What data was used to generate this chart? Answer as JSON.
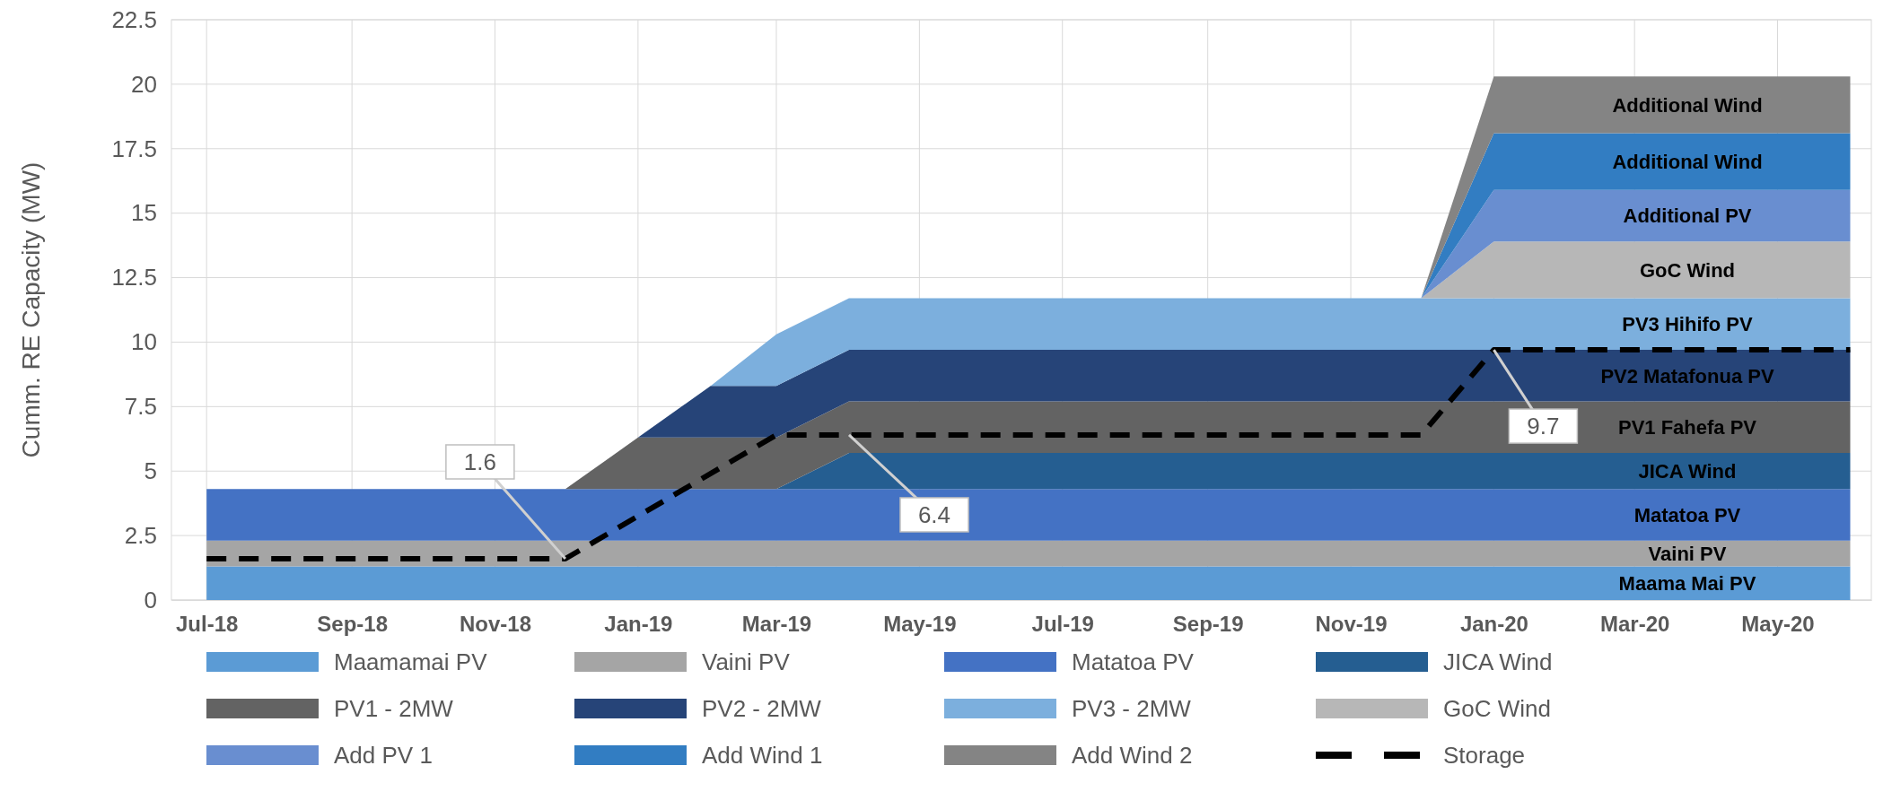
{
  "chart_data": {
    "type": "area",
    "stacked": true,
    "ylabel": "Cumm. RE Capacity (MW)",
    "x": [
      "2018-07",
      "2018-08",
      "2018-09",
      "2018-10",
      "2018-11",
      "2018-12",
      "2019-01",
      "2019-02",
      "2019-03",
      "2019-04",
      "2019-05",
      "2019-06",
      "2019-07",
      "2019-08",
      "2019-09",
      "2019-10",
      "2019-11",
      "2019-12",
      "2020-01",
      "2020-02",
      "2020-03",
      "2020-04",
      "2020-05",
      "2020-06"
    ],
    "xlim": [
      "2018-06-16",
      "2020-06-10"
    ],
    "xticks": [
      {
        "value": "2018-07",
        "label": "Jul-18"
      },
      {
        "value": "2018-09",
        "label": "Sep-18"
      },
      {
        "value": "2018-11",
        "label": "Nov-18"
      },
      {
        "value": "2019-01",
        "label": "Jan-19"
      },
      {
        "value": "2019-03",
        "label": "Mar-19"
      },
      {
        "value": "2019-05",
        "label": "May-19"
      },
      {
        "value": "2019-07",
        "label": "Jul-19"
      },
      {
        "value": "2019-09",
        "label": "Sep-19"
      },
      {
        "value": "2019-11",
        "label": "Nov-19"
      },
      {
        "value": "2020-01",
        "label": "Jan-20"
      },
      {
        "value": "2020-03",
        "label": "Mar-20"
      },
      {
        "value": "2020-05",
        "label": "May-20"
      }
    ],
    "ylim": [
      0,
      22.5
    ],
    "yticks": [
      0,
      2.5,
      5,
      7.5,
      10,
      12.5,
      15,
      17.5,
      20,
      22.5
    ],
    "grid": true,
    "legend": "bottom",
    "series": [
      {
        "name": "Maamamai PV",
        "color": "#5b9bd5",
        "values": [
          1.3,
          1.3,
          1.3,
          1.3,
          1.3,
          1.3,
          1.3,
          1.3,
          1.3,
          1.3,
          1.3,
          1.3,
          1.3,
          1.3,
          1.3,
          1.3,
          1.3,
          1.3,
          1.3,
          1.3,
          1.3,
          1.3,
          1.3,
          1.3
        ]
      },
      {
        "name": "Vaini PV",
        "color": "#a5a5a5",
        "values": [
          1,
          1,
          1,
          1,
          1,
          1,
          1,
          1,
          1,
          1,
          1,
          1,
          1,
          1,
          1,
          1,
          1,
          1,
          1,
          1,
          1,
          1,
          1,
          1
        ]
      },
      {
        "name": "Matatoa PV",
        "color": "#4472c4",
        "values": [
          2,
          2,
          2,
          2,
          2,
          2,
          2,
          2,
          2,
          2,
          2,
          2,
          2,
          2,
          2,
          2,
          2,
          2,
          2,
          2,
          2,
          2,
          2,
          2
        ]
      },
      {
        "name": "JICA Wind",
        "color": "#255e91",
        "values": [
          0,
          0,
          0,
          0,
          0,
          0,
          0,
          0,
          0,
          1.4,
          1.4,
          1.4,
          1.4,
          1.4,
          1.4,
          1.4,
          1.4,
          1.4,
          1.4,
          1.4,
          1.4,
          1.4,
          1.4,
          1.4
        ]
      },
      {
        "name": "PV1 - 2MW",
        "color": "#636363",
        "values": [
          0,
          0,
          0,
          0,
          0,
          0,
          2,
          2,
          2,
          2,
          2,
          2,
          2,
          2,
          2,
          2,
          2,
          2,
          2,
          2,
          2,
          2,
          2,
          2
        ]
      },
      {
        "name": "PV2 - 2MW",
        "color": "#264478",
        "values": [
          0,
          0,
          0,
          0,
          0,
          0,
          0,
          2,
          2,
          2,
          2,
          2,
          2,
          2,
          2,
          2,
          2,
          2,
          2,
          2,
          2,
          2,
          2,
          2
        ]
      },
      {
        "name": "PV3 - 2MW",
        "color": "#7cafdd",
        "values": [
          0,
          0,
          0,
          0,
          0,
          0,
          0,
          0,
          2,
          2,
          2,
          2,
          2,
          2,
          2,
          2,
          2,
          2,
          2,
          2,
          2,
          2,
          2,
          2
        ]
      },
      {
        "name": "GoC Wind",
        "color": "#b7b7b7",
        "values": [
          0,
          0,
          0,
          0,
          0,
          0,
          0,
          0,
          0,
          0,
          0,
          0,
          0,
          0,
          0,
          0,
          0,
          0,
          2.2,
          2.2,
          2.2,
          2.2,
          2.2,
          2.2
        ]
      },
      {
        "name": "Add PV 1",
        "color": "#698ed0",
        "values": [
          0,
          0,
          0,
          0,
          0,
          0,
          0,
          0,
          0,
          0,
          0,
          0,
          0,
          0,
          0,
          0,
          0,
          0,
          2,
          2,
          2,
          2,
          2,
          2
        ]
      },
      {
        "name": "Add Wind 1",
        "color": "#327dc2",
        "values": [
          0,
          0,
          0,
          0,
          0,
          0,
          0,
          0,
          0,
          0,
          0,
          0,
          0,
          0,
          0,
          0,
          0,
          0,
          2.2,
          2.2,
          2.2,
          2.2,
          2.2,
          2.2
        ]
      },
      {
        "name": "Add Wind 2",
        "color": "#848484",
        "values": [
          0,
          0,
          0,
          0,
          0,
          0,
          0,
          0,
          0,
          0,
          0,
          0,
          0,
          0,
          0,
          0,
          0,
          0,
          2.2,
          2.2,
          2.2,
          2.2,
          2.2,
          2.2
        ]
      },
      {
        "name": "Storage",
        "type": "line",
        "line_style": "dashed",
        "color": "#000000",
        "x": [
          "2018-07",
          "2018-12",
          "2019-03",
          "2019-04",
          "2019-12",
          "2020-01",
          "2020-06"
        ],
        "values": [
          1.6,
          1.6,
          6.4,
          6.4,
          6.4,
          9.7,
          9.7
        ],
        "value_labels": [
          null,
          "1.6",
          null,
          "6.4",
          null,
          "9.7",
          null
        ]
      }
    ],
    "annotations": [
      "Additional Wind",
      "Additional Wind",
      "Additional PV",
      "GoC Wind",
      "PV3 Hihifo PV",
      "PV2 Matafonua PV",
      "PV1 Fahefa PV",
      "JICA Wind",
      "Matatoa PV",
      "Vaini PV",
      "Maama Mai PV"
    ]
  }
}
